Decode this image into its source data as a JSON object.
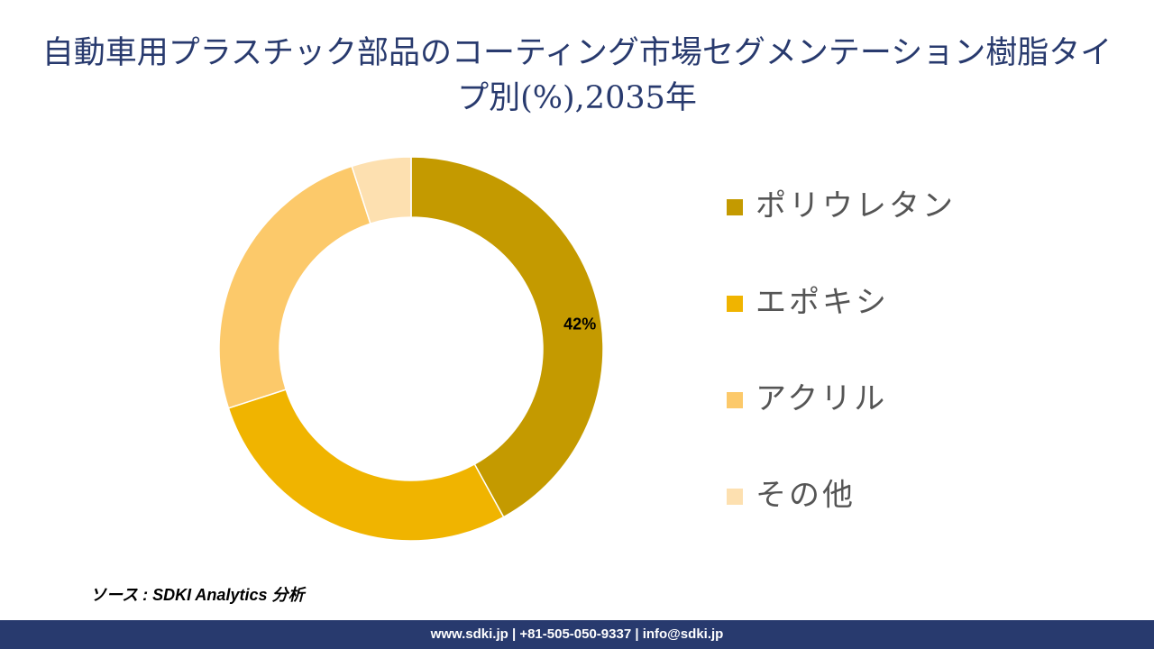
{
  "chart_data": {
    "type": "donut",
    "title": "自動車用プラスチック部品のコーティング市場セグメンテーション樹脂タイプ別(%),2035年",
    "categories": [
      "ポリウレタン",
      "エポキシ",
      "アクリル",
      "その他"
    ],
    "values": [
      42,
      28,
      25,
      5
    ],
    "value_labels": [
      "42%",
      null,
      null,
      null
    ],
    "colors": [
      "#c49a00",
      "#f0b400",
      "#fcc96a",
      "#fde0b0"
    ],
    "legend": "right",
    "source": "ソース : SDKI Analytics 分析"
  },
  "footer": {
    "contact": "www.sdki.jp | +81-505-050-9337 | info@sdki.jp"
  }
}
